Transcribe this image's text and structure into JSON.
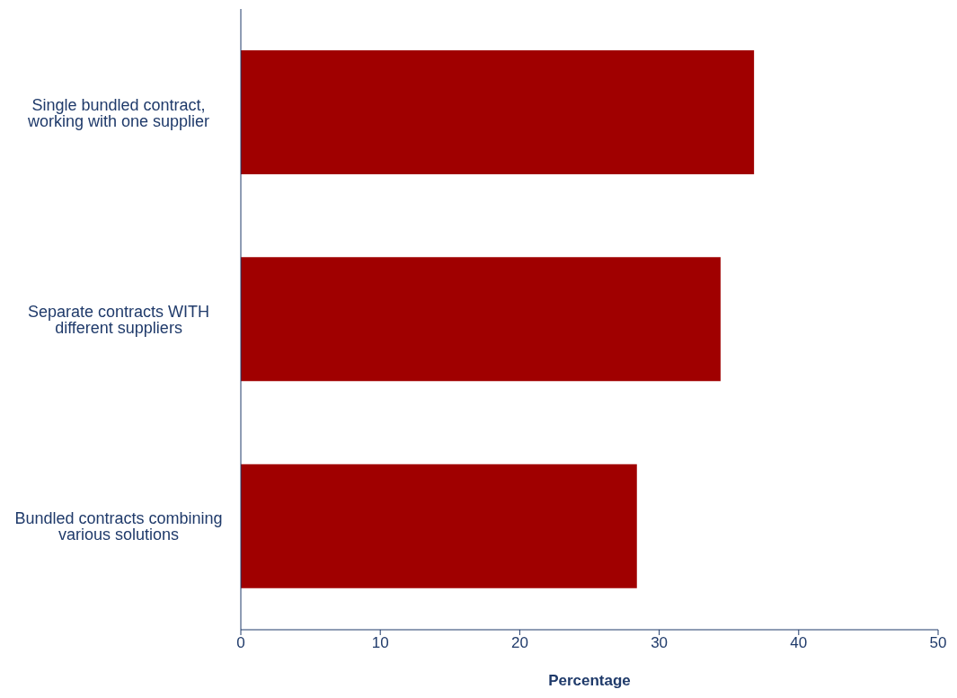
{
  "chart_data": {
    "type": "bar",
    "orientation": "horizontal",
    "xlabel": "Percentage",
    "categories": [
      "Single bundled contract, working with one supplier",
      "Separate contracts WITH different suppliers",
      "Bundled contracts combining various solutions"
    ],
    "values": [
      36.8,
      34.4,
      28.4
    ],
    "color": "#a00000",
    "xlim": [
      0,
      50
    ],
    "xticks": [
      0,
      10,
      20,
      30,
      40,
      50
    ],
    "grid": false,
    "legend": false
  }
}
